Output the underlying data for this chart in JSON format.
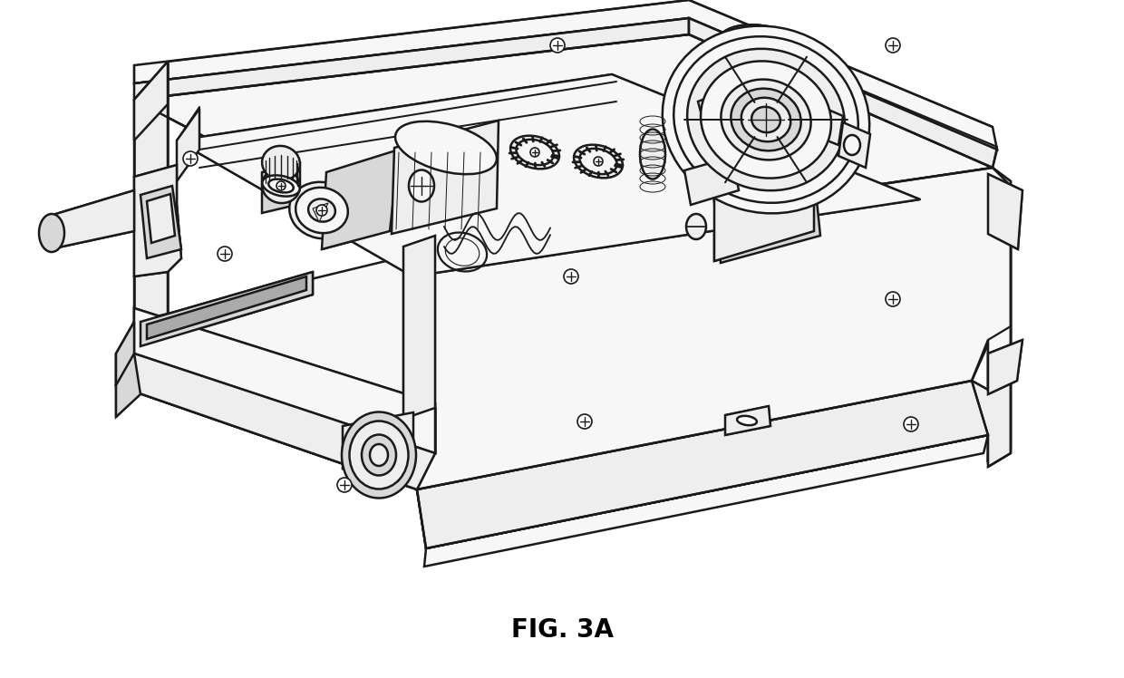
{
  "title": "FIG. 3A",
  "title_fontsize": 20,
  "title_fontweight": "bold",
  "bg_color": "#ffffff",
  "line_color": "#1a1a1a",
  "line_width": 1.8,
  "white": "#ffffff",
  "near_white": "#f7f7f7",
  "light_gray": "#eeeeee",
  "mid_gray": "#d8d8d8",
  "dark_gray": "#aaaaaa",
  "figsize": [
    12.4,
    7.48
  ],
  "dpi": 100
}
